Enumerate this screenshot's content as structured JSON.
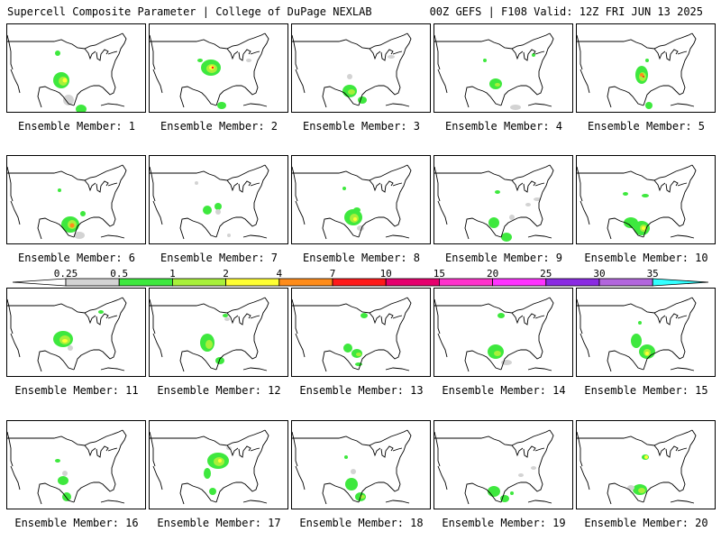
{
  "header": {
    "title": "Supercell Composite Parameter | College of DuPage NEXLAB",
    "run_info": "00Z GEFS | F108 Valid: 12Z FRI JUN 13 2025"
  },
  "panels": [
    {
      "label": "Ensemble Member: 1"
    },
    {
      "label": "Ensemble Member: 2"
    },
    {
      "label": "Ensemble Member: 3"
    },
    {
      "label": "Ensemble Member: 4"
    },
    {
      "label": "Ensemble Member: 5"
    },
    {
      "label": "Ensemble Member: 6"
    },
    {
      "label": "Ensemble Member: 7"
    },
    {
      "label": "Ensemble Member: 8"
    },
    {
      "label": "Ensemble Member: 9"
    },
    {
      "label": "Ensemble Member: 10"
    },
    {
      "label": "Ensemble Member: 11"
    },
    {
      "label": "Ensemble Member: 12"
    },
    {
      "label": "Ensemble Member: 13"
    },
    {
      "label": "Ensemble Member: 14"
    },
    {
      "label": "Ensemble Member: 15"
    },
    {
      "label": "Ensemble Member: 16"
    },
    {
      "label": "Ensemble Member: 17"
    },
    {
      "label": "Ensemble Member: 18"
    },
    {
      "label": "Ensemble Member: 19"
    },
    {
      "label": "Ensemble Member: 20"
    }
  ],
  "colorbar": {
    "labels": [
      "0.25",
      "0.5",
      "1",
      "2",
      "4",
      "7",
      "10",
      "15",
      "20",
      "25",
      "30",
      "35"
    ],
    "colors": [
      "#d3d3d3",
      "#3ee83e",
      "#a8f03a",
      "#ffff33",
      "#ff8c1a",
      "#ff1a1a",
      "#e6006e",
      "#ff33cc",
      "#ff33ff",
      "#8a2be2",
      "#b266dd",
      "#33ffff"
    ]
  }
}
